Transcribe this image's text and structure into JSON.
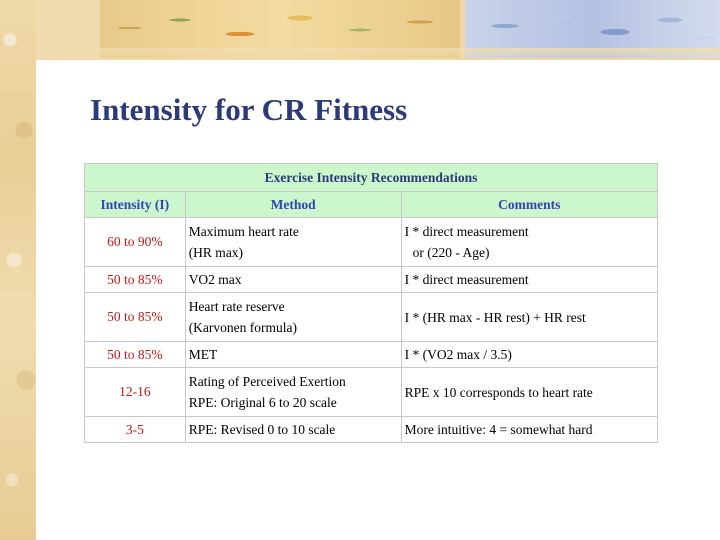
{
  "slide": {
    "title": "Intensity for CR Fitness"
  },
  "table": {
    "caption": "Exercise Intensity Recommendations",
    "headers": {
      "intensity": "Intensity (I)",
      "method": "Method",
      "comments": "Comments"
    },
    "rows": [
      {
        "intensity": "60 to 90%",
        "method": [
          "Maximum heart rate",
          "(HR max)"
        ],
        "comments": [
          "I * direct measurement",
          "or (220 - Age)"
        ]
      },
      {
        "intensity": "50 to 85%",
        "method": [
          "VO2 max"
        ],
        "comments": [
          "I * direct measurement"
        ]
      },
      {
        "intensity": "50 to 85%",
        "method": [
          "Heart rate reserve",
          "(Karvonen formula)"
        ],
        "comments": [
          "I * (HR max - HR rest) + HR rest"
        ]
      },
      {
        "intensity": "50 to 85%",
        "method": [
          "MET"
        ],
        "comments": [
          "I * (VO2 max / 3.5)"
        ]
      },
      {
        "intensity": "12-16",
        "method": [
          "Rating of Perceived Exertion",
          "RPE: Original 6 to 20 scale"
        ],
        "comments": [
          "RPE x 10 corresponds to heart rate"
        ]
      },
      {
        "intensity": "3-5",
        "method": [
          "RPE: Revised 0 to 10 scale"
        ],
        "comments": [
          "More intuitive: 4 = somewhat hard"
        ]
      }
    ]
  },
  "colors": {
    "title": "#2b3a78",
    "header_bg": "#ccf7cc",
    "header_text": "#2f45b4",
    "intensity_text": "#c01818"
  }
}
